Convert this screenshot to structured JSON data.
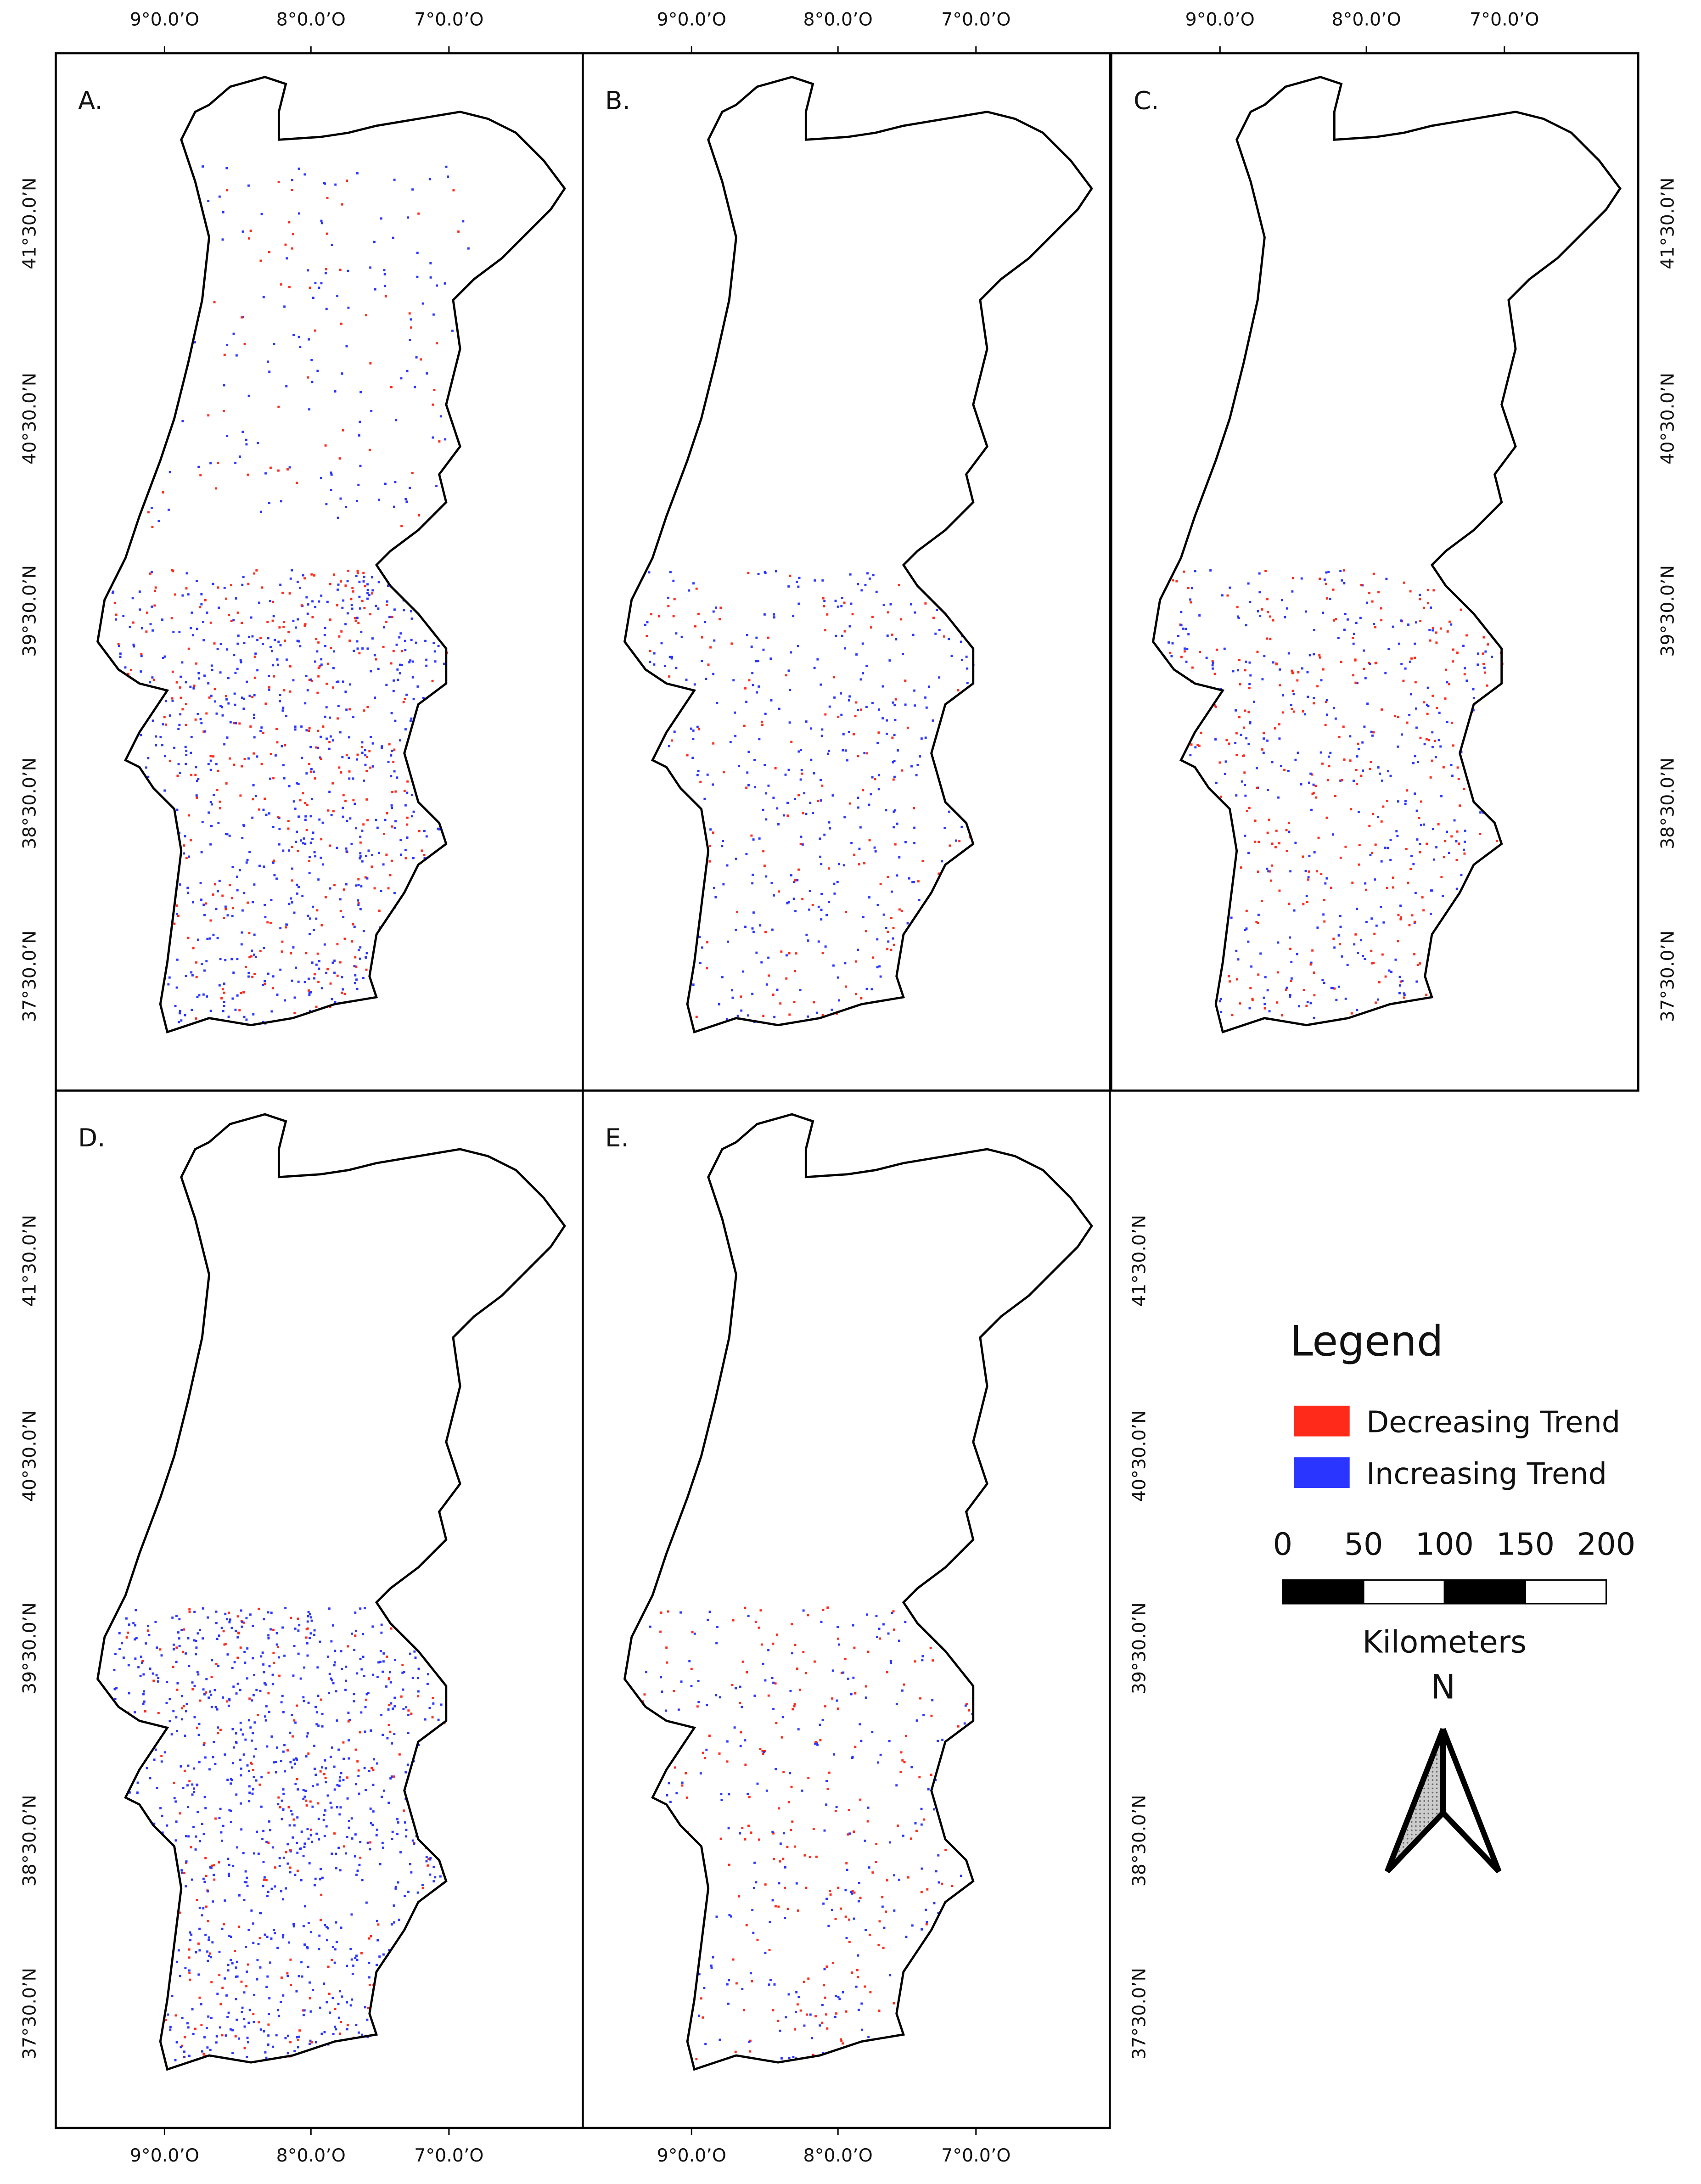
{
  "panels": [
    {
      "label": "A."
    },
    {
      "label": "B."
    },
    {
      "label": "C."
    },
    {
      "label": "D."
    },
    {
      "label": "E."
    }
  ],
  "longitude_labels": [
    "9°0.0’O",
    "8°0.0’O",
    "7°0.0’O"
  ],
  "latitude_labels": [
    "41°30.0’N",
    "40°30.0’N",
    "39°30.0’N",
    "38°30.0’N",
    "37°30.0’N"
  ],
  "legend": {
    "title": "Legend",
    "items": [
      {
        "label": "Decreasing Trend",
        "color": "#ff2a1a"
      },
      {
        "label": "Increasing Trend",
        "color": "#2a35ff"
      }
    ]
  },
  "north_arrow": {
    "label": "N"
  },
  "scale_bar": {
    "labels": [
      "0",
      "50",
      "100",
      "150",
      "200"
    ],
    "unit": "Kilometers"
  }
}
